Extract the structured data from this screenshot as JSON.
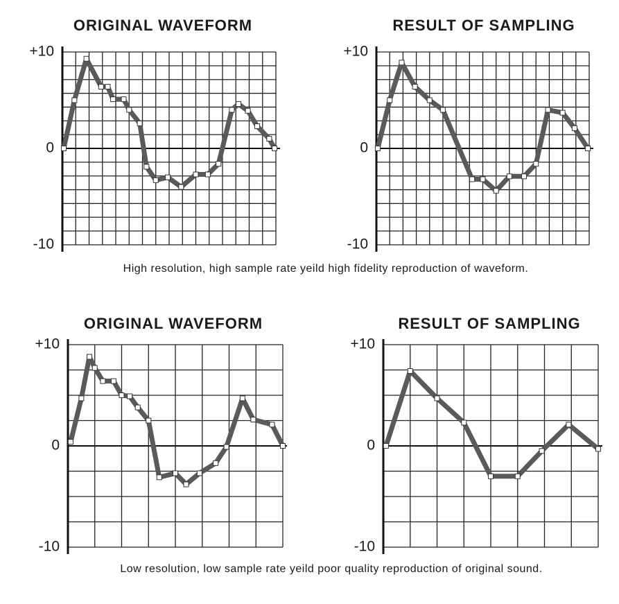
{
  "chart_data": [
    {
      "type": "line",
      "title": "ORIGINAL WAVEFORM",
      "color": "#5a5a5a",
      "grid": true,
      "xlim": [
        0,
        16
      ],
      "ylim": [
        -10,
        10
      ],
      "yticks": [
        {
          "value": 10,
          "label": "+10"
        },
        0,
        -10
      ],
      "x": [
        0.1,
        0.9,
        1.8,
        2.9,
        3.4,
        3.8,
        4.6,
        5,
        5.8,
        6.3,
        7,
        7.9,
        8.9,
        10,
        10.9,
        11.7,
        12.7,
        13.2,
        13.9,
        14.6,
        15.5,
        15.9
      ],
      "values": [
        0,
        5,
        9.3,
        6.4,
        6.4,
        5.1,
        5.1,
        4,
        2.6,
        -1.9,
        -3.3,
        -3,
        -4,
        -2.7,
        -2.7,
        -1.6,
        4,
        4.6,
        3.9,
        2.3,
        1,
        0
      ]
    },
    {
      "type": "line",
      "title": "RESULT OF SAMPLING",
      "color": "#5a5a5a",
      "grid": true,
      "xlim": [
        0,
        16
      ],
      "ylim": [
        -10,
        10
      ],
      "yticks": [
        {
          "value": 10,
          "label": "+10"
        },
        0,
        -10
      ],
      "x": [
        0.1,
        1,
        1.9,
        2.9,
        4,
        5,
        7.2,
        8,
        9,
        10,
        11.1,
        12,
        12.9,
        14,
        14.9,
        15.9
      ],
      "values": [
        0,
        5,
        8.9,
        6.4,
        5,
        4,
        -3.2,
        -3.2,
        -4.4,
        -2.9,
        -2.9,
        -1.6,
        4,
        3.7,
        2.1,
        0
      ]
    },
    {
      "type": "line",
      "title": "ORIGINAL WAVEFORM",
      "color": "#5a5a5a",
      "grid": true,
      "xlim": [
        0,
        8
      ],
      "ylim": [
        -10,
        10
      ],
      "yticks": [
        {
          "value": 10,
          "label": "+10"
        },
        0,
        -10
      ],
      "x": [
        0.1,
        0.5,
        0.8,
        1,
        1.3,
        1.7,
        2,
        2.3,
        2.6,
        3,
        3.4,
        4,
        4.4,
        4.9,
        5.5,
        5.9,
        6.5,
        6.9,
        7.6,
        8
      ],
      "values": [
        0.4,
        4.7,
        8.8,
        7.7,
        6.4,
        6.4,
        5,
        4.9,
        3.8,
        2.5,
        -3.1,
        -2.7,
        -3.8,
        -2.7,
        -1.7,
        -0.1,
        4.7,
        2.6,
        2.1,
        0
      ]
    },
    {
      "type": "line",
      "title": "RESULT OF SAMPLING",
      "color": "#5a5a5a",
      "grid": true,
      "xlim": [
        0,
        8
      ],
      "ylim": [
        -10,
        10
      ],
      "yticks": [
        {
          "value": 10,
          "label": "+10"
        },
        0,
        -10
      ],
      "x": [
        0.1,
        1,
        2,
        3,
        4,
        5,
        5.9,
        6.9,
        8
      ],
      "values": [
        0,
        7.4,
        4.7,
        2.3,
        -3,
        -3,
        -0.5,
        2.1,
        -0.3
      ]
    }
  ],
  "captions": [
    "High resolution, high sample rate yeild high fidelity reproduction of waveform.",
    "Low resolution, low sample rate yeild poor quality reproduction of original sound."
  ]
}
